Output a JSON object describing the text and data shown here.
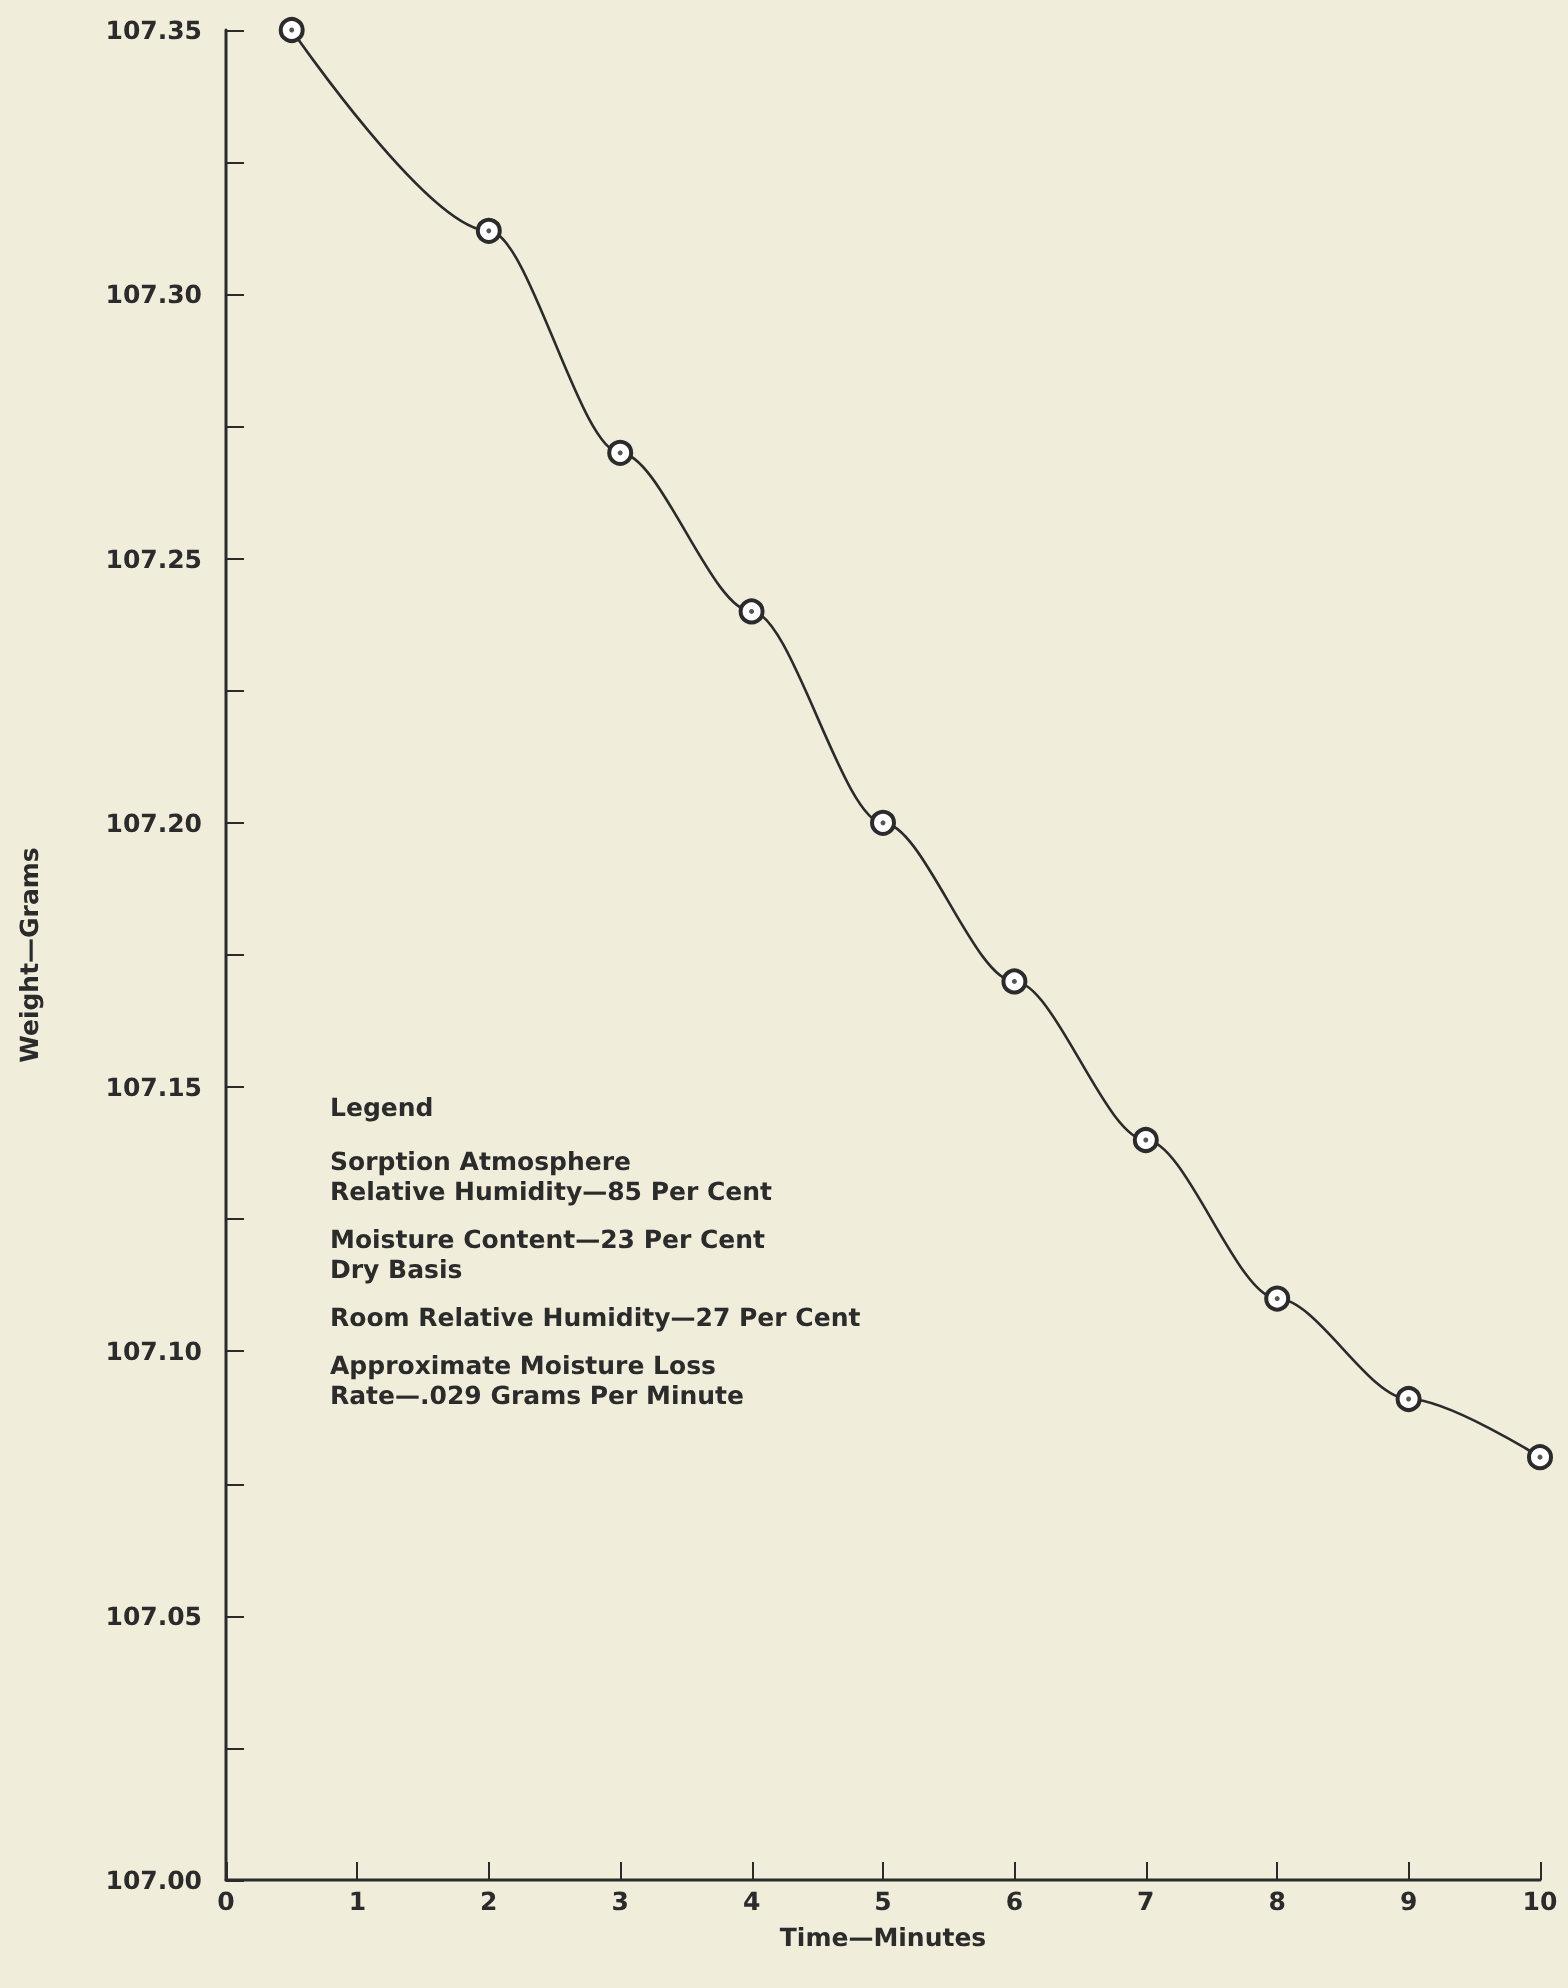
{
  "chart_data": {
    "type": "line",
    "xlabel": "Time—Minutes",
    "ylabel": "Weight—Grams",
    "x": [
      0.5,
      2,
      3,
      4,
      5,
      6,
      7,
      8,
      9,
      10
    ],
    "series": [
      {
        "color": "#2b2b2b",
        "values": [
          107.35,
          107.312,
          107.27,
          107.24,
          107.2,
          107.17,
          107.14,
          107.11,
          107.091,
          107.08
        ]
      }
    ],
    "xlim": [
      0,
      10
    ],
    "xticks": [
      0,
      1,
      2,
      3,
      4,
      5,
      6,
      7,
      8,
      9,
      10
    ],
    "ylim": [
      107.0,
      107.35
    ],
    "yticks": [
      {
        "value": 107.0,
        "label": "107.00"
      },
      {
        "value": 107.025,
        "label": null
      },
      {
        "value": 107.05,
        "label": "107.05"
      },
      {
        "value": 107.075,
        "label": null
      },
      {
        "value": 107.1,
        "label": "107.10"
      },
      {
        "value": 107.125,
        "label": null
      },
      {
        "value": 107.15,
        "label": "107.15"
      },
      {
        "value": 107.175,
        "label": null
      },
      {
        "value": 107.2,
        "label": "107.20"
      },
      {
        "value": 107.225,
        "label": null
      },
      {
        "value": 107.25,
        "label": "107.25"
      },
      {
        "value": 107.275,
        "label": null
      },
      {
        "value": 107.3,
        "label": "107.30"
      },
      {
        "value": 107.325,
        "label": null
      },
      {
        "value": 107.35,
        "label": "107.35"
      }
    ],
    "annotations": [
      "Legend",
      "Sorption Atmosphere\nRelative Humidity—85 Per Cent",
      "Moisture Content—23 Per Cent\nDry Basis",
      "Room Relative Humidity—27 Per Cent",
      "Approximate Moisture Loss\nRate—.029 Grams Per Minute"
    ],
    "grid": false,
    "marker": "circle",
    "line_style": "solid"
  }
}
